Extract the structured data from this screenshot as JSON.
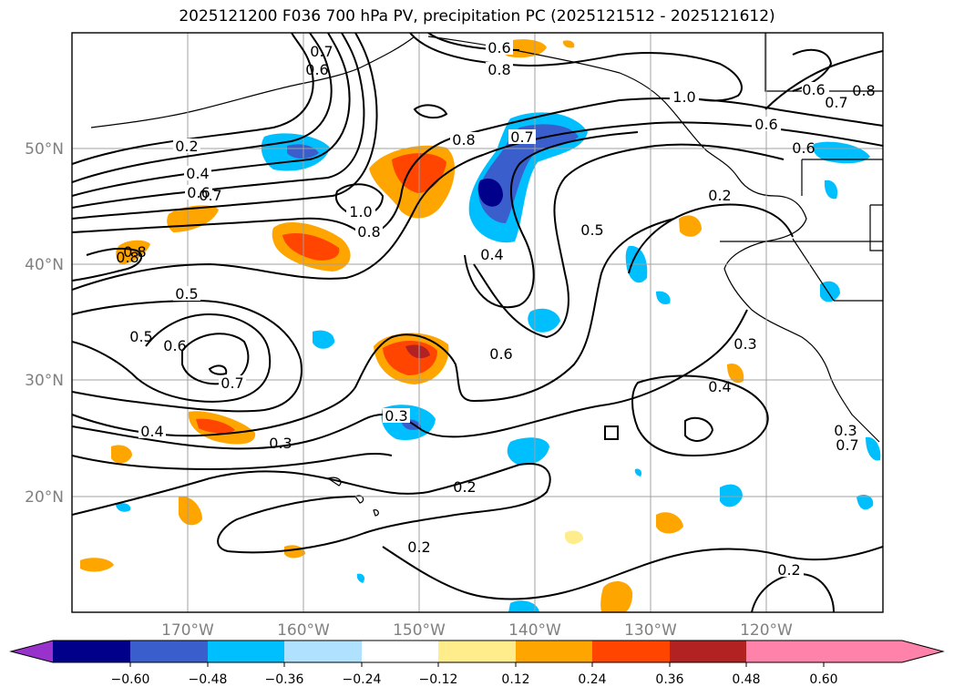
{
  "title": "2025121200 F036 700 hPa PV, precipitation PC (2025121512 - 2025121612)",
  "map": {
    "lat_labels": [
      "50°N",
      "40°N",
      "30°N",
      "20°N"
    ],
    "lon_labels": [
      "170°W",
      "160°W",
      "150°W",
      "140°W",
      "130°W",
      "120°W"
    ],
    "label_color": "#808080",
    "contour_labels": [
      "0.6",
      "0.8",
      "0.7",
      "0.6",
      "0.6",
      "0.8",
      "0.7",
      "1.0",
      "0.6",
      "0.8",
      "0.2",
      "0.4",
      "0.6",
      "0.7",
      "1.0",
      "0.8",
      "0.8",
      "0.7",
      "0.6",
      "0.2",
      "0.8",
      "0.5",
      "0.4",
      "0.5",
      "0.5",
      "0.6",
      "0.7",
      "0.3",
      "0.6",
      "0.4",
      "0.3",
      "0.3",
      "0.2",
      "0.2",
      "0.4",
      "0.3",
      "0.7",
      "0.2"
    ]
  },
  "colorbar": {
    "tick_labels": [
      "−0.60",
      "−0.48",
      "−0.36",
      "−0.24",
      "−0.12",
      "0.12",
      "0.24",
      "0.36",
      "0.48",
      "0.60"
    ],
    "colors": [
      "#9932CC",
      "#00008B",
      "#3A5FCD",
      "#00BFFF",
      "#B0E2FF",
      "#FFFFFF",
      "#FFEC8B",
      "#FFA500",
      "#FF4500",
      "#B22222",
      "#FF82AB"
    ]
  }
}
